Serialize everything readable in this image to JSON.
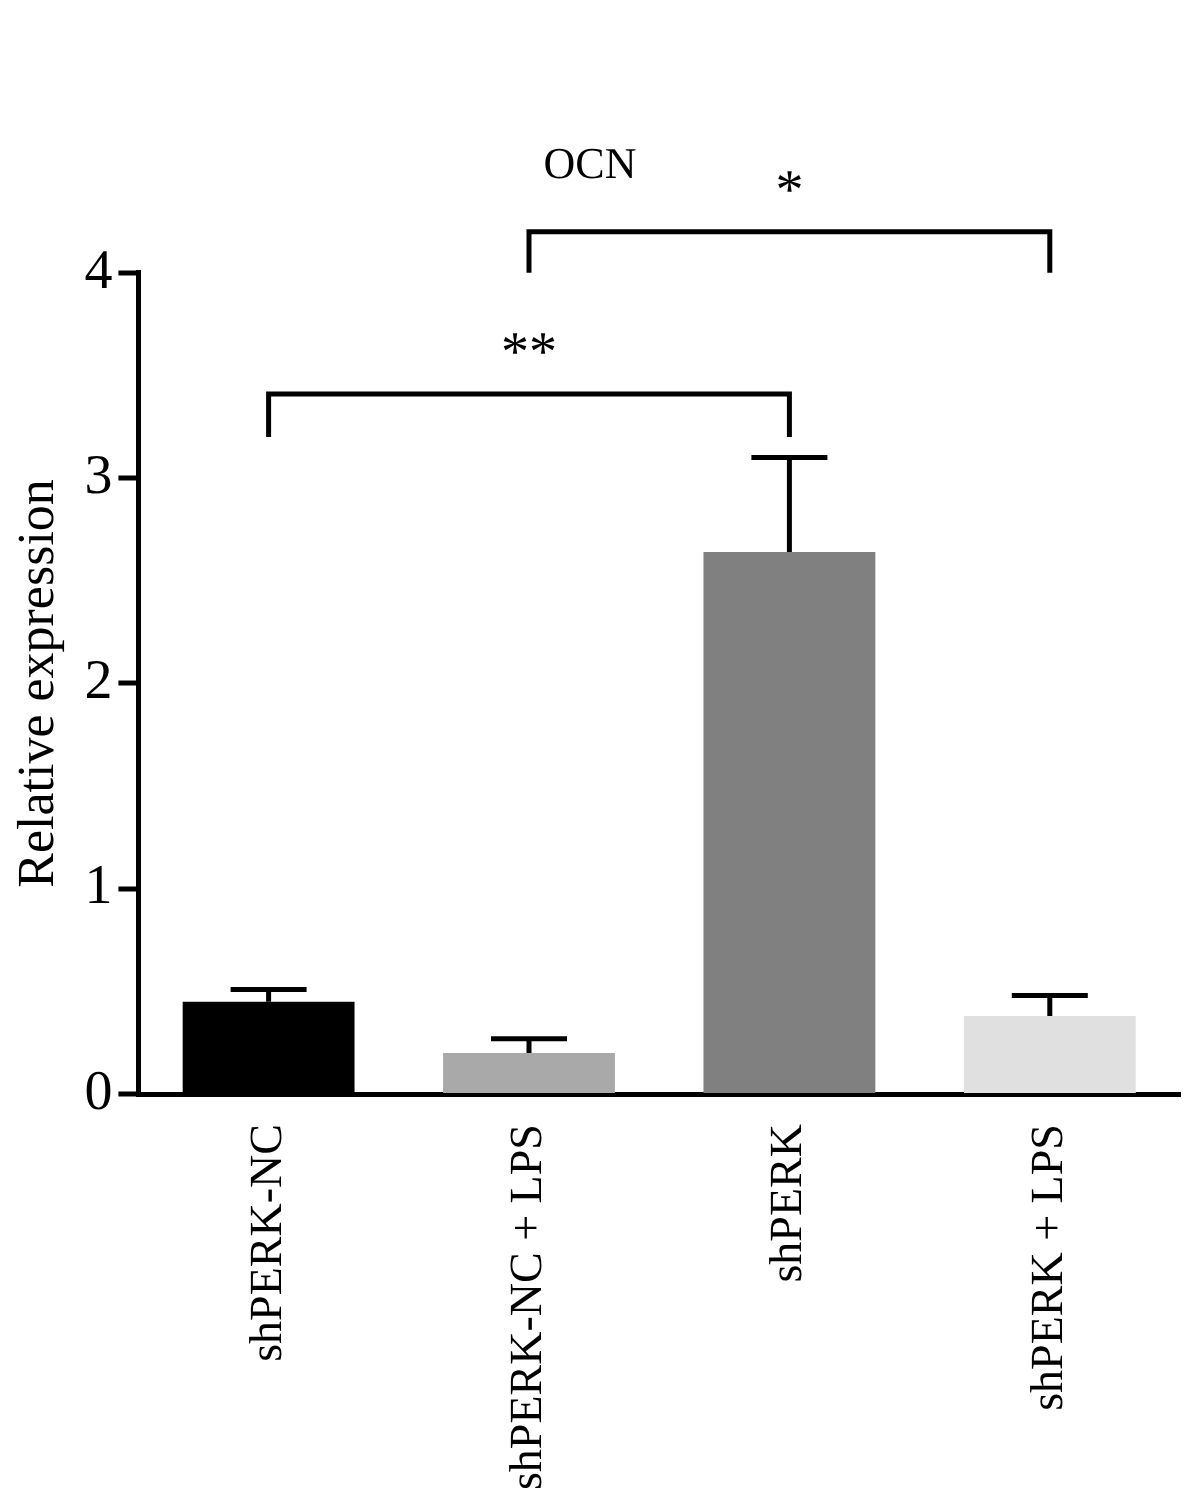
{
  "chart_data": {
    "type": "bar",
    "title": "OCN",
    "ylabel": "Relative expression",
    "categories": [
      "shPERK-NC",
      "shPERK-NC + LPS",
      "shPERK",
      "shPERK + LPS"
    ],
    "values": [
      0.45,
      0.2,
      2.64,
      0.38
    ],
    "colors": [
      "#000000",
      "#a9a9a9",
      "#808080",
      "#e0e0e0"
    ],
    "errors": [
      [
        0.45,
        0.51
      ],
      [
        0.2,
        0.27
      ],
      [
        2.64,
        3.1
      ],
      [
        0.38,
        0.48
      ]
    ],
    "ylim": [
      0,
      4
    ],
    "yticks": [
      0,
      1,
      2,
      3,
      4
    ],
    "grid": false,
    "legend": false,
    "annotations": [
      "**",
      "*"
    ]
  }
}
